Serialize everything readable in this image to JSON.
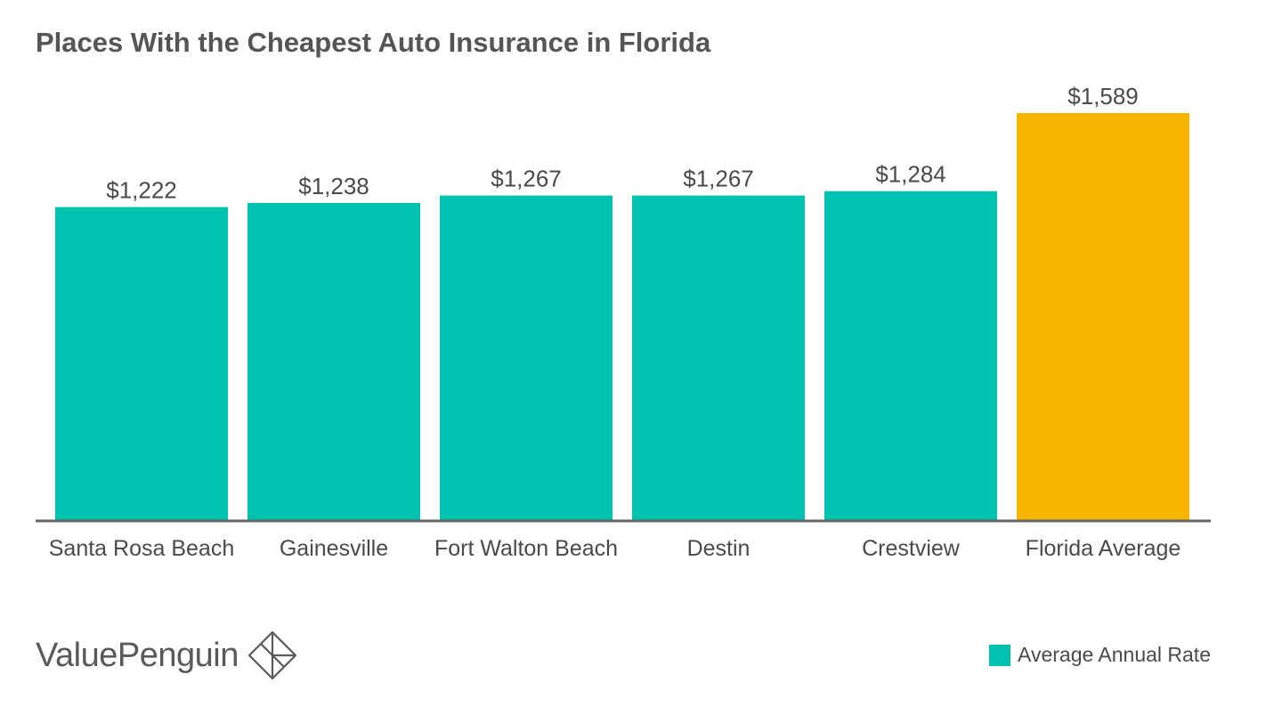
{
  "chart_data": {
    "type": "bar",
    "title": "Places With the Cheapest Auto Insurance in Florida",
    "categories": [
      "Santa Rosa Beach",
      "Gainesville",
      "Fort Walton Beach",
      "Destin",
      "Crestview",
      "Florida Average"
    ],
    "series": [
      {
        "name": "Average Annual Rate",
        "values": [
          1222,
          1238,
          1267,
          1267,
          1284,
          1589
        ]
      }
    ],
    "data_labels": [
      "$1,222",
      "$1,238",
      "$1,267",
      "$1,267",
      "$1,284",
      "$1,589"
    ],
    "xlabel": "",
    "ylabel": "",
    "ylim": [
      0,
      1589
    ],
    "grid": false,
    "legend_position": "bottom-right",
    "colors": {
      "series": "#00c2b0",
      "highlight": "#f7b500",
      "highlight_category": "Florida Average",
      "axis": "#666666"
    }
  },
  "brand": {
    "name": "ValuePenguin",
    "logo_icon": "valuepenguin-logo-icon"
  },
  "legend": {
    "label": "Average Annual Rate"
  }
}
